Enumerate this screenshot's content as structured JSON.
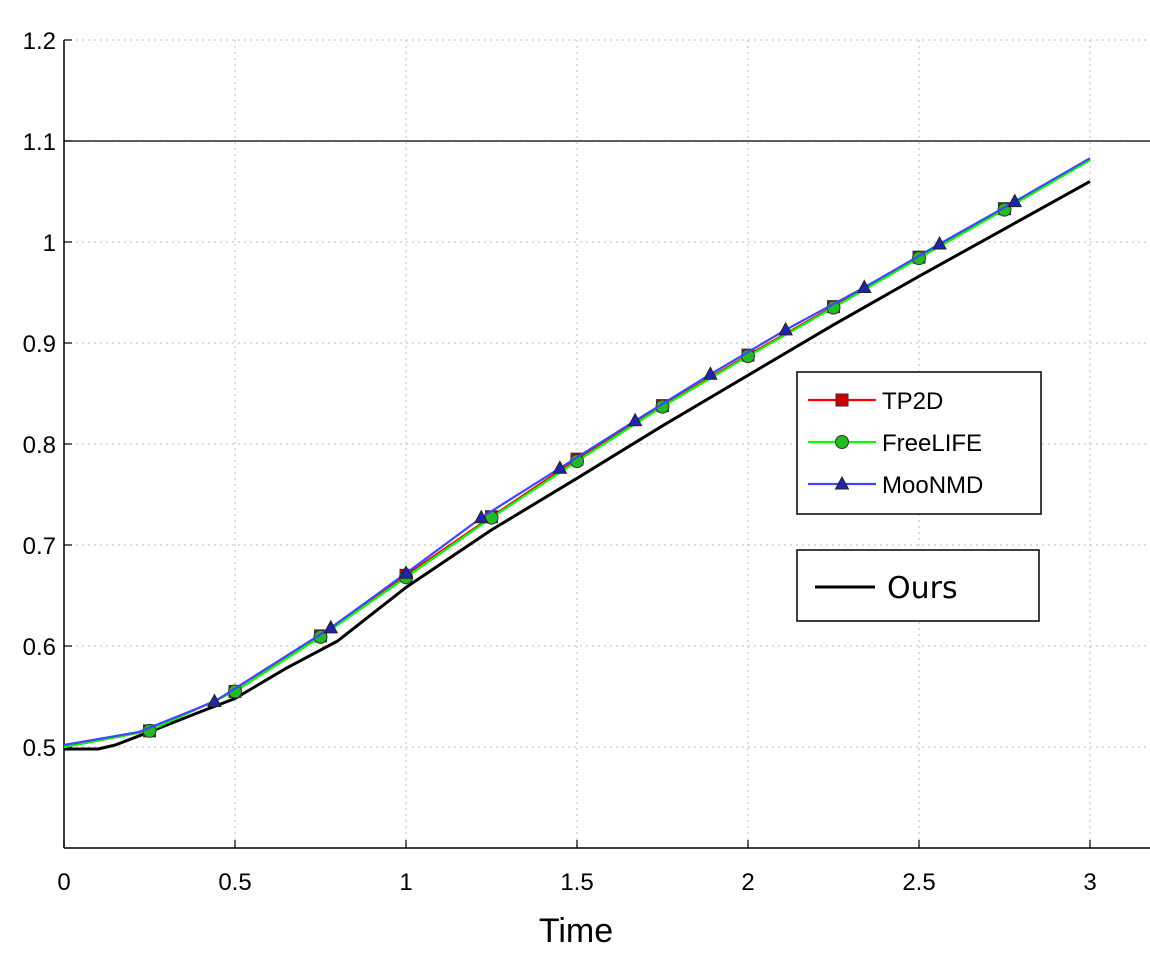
{
  "chart_data": {
    "type": "line",
    "xlabel": "Time",
    "ylabel": "",
    "xlim": [
      0,
      3
    ],
    "ylim": [
      0.4,
      1.2
    ],
    "x_ticks": [
      0,
      0.5,
      1,
      1.5,
      2,
      2.5,
      3
    ],
    "x_tick_labels": [
      "0",
      "0.5",
      "1",
      "1.5",
      "2",
      "2.5",
      "3"
    ],
    "y_ticks": [
      0.5,
      0.6,
      0.7,
      0.8,
      0.9,
      1.0,
      1.1,
      1.2
    ],
    "y_tick_labels": [
      "0.5",
      "0.6",
      "0.7",
      "0.8",
      "0.9",
      "1",
      "1.1",
      "1.2"
    ],
    "grid": true,
    "legend_position": "right",
    "reference_line": {
      "y": 1.1
    },
    "series": [
      {
        "name": "TP2D",
        "color": "#ff0000",
        "marker": "square",
        "marker_color": "#cc0000",
        "x": [
          0,
          0.25,
          0.5,
          0.75,
          1.0,
          1.25,
          1.5,
          1.75,
          2.0,
          2.25,
          2.5,
          2.75,
          3.0
        ],
        "y": [
          0.5,
          0.516,
          0.555,
          0.61,
          0.67,
          0.728,
          0.785,
          0.838,
          0.888,
          0.936,
          0.985,
          1.033,
          1.082
        ],
        "marker_x": [
          0.25,
          0.5,
          0.75,
          1.0,
          1.25,
          1.5,
          1.75,
          2.0,
          2.25,
          2.5,
          2.75
        ]
      },
      {
        "name": "FreeLIFE",
        "color": "#00ff00",
        "marker": "circle",
        "marker_color": "#22bb22",
        "x": [
          0,
          0.25,
          0.5,
          0.75,
          1.0,
          1.25,
          1.5,
          1.75,
          2.0,
          2.25,
          2.5,
          2.75,
          3.0
        ],
        "y": [
          0.5,
          0.516,
          0.555,
          0.609,
          0.668,
          0.727,
          0.783,
          0.837,
          0.887,
          0.935,
          0.984,
          1.032,
          1.081
        ],
        "marker_x": [
          0.25,
          0.5,
          0.75,
          1.0,
          1.25,
          1.5,
          1.75,
          2.0,
          2.25,
          2.5,
          2.75
        ]
      },
      {
        "name": "MooNMD",
        "color": "#4444ff",
        "marker": "triangle",
        "marker_color": "#2222aa",
        "x": [
          0,
          0.22,
          0.44,
          0.78,
          1.0,
          1.22,
          1.45,
          1.67,
          1.89,
          2.11,
          2.34,
          2.56,
          2.78,
          3.0
        ],
        "y": [
          0.502,
          0.515,
          0.545,
          0.618,
          0.672,
          0.727,
          0.776,
          0.823,
          0.869,
          0.913,
          0.955,
          0.998,
          1.04,
          1.083
        ],
        "marker_x": [
          0.44,
          0.78,
          1.0,
          1.22,
          1.45,
          1.67,
          1.89,
          2.11,
          2.34,
          2.56,
          2.78
        ]
      },
      {
        "name": "Ours",
        "color": "#000000",
        "marker": "none",
        "x": [
          0,
          0.1,
          0.15,
          0.25,
          0.4,
          0.5,
          0.65,
          0.8,
          1.0,
          1.25,
          1.5,
          1.75,
          2.0,
          2.25,
          2.5,
          2.75,
          3.0
        ],
        "y": [
          0.498,
          0.498,
          0.502,
          0.515,
          0.535,
          0.548,
          0.578,
          0.605,
          0.658,
          0.715,
          0.766,
          0.818,
          0.868,
          0.918,
          0.966,
          1.013,
          1.06
        ]
      }
    ],
    "legend_main": [
      "TP2D",
      "FreeLIFE",
      "MooNMD"
    ],
    "legend_secondary": [
      "Ours"
    ]
  }
}
